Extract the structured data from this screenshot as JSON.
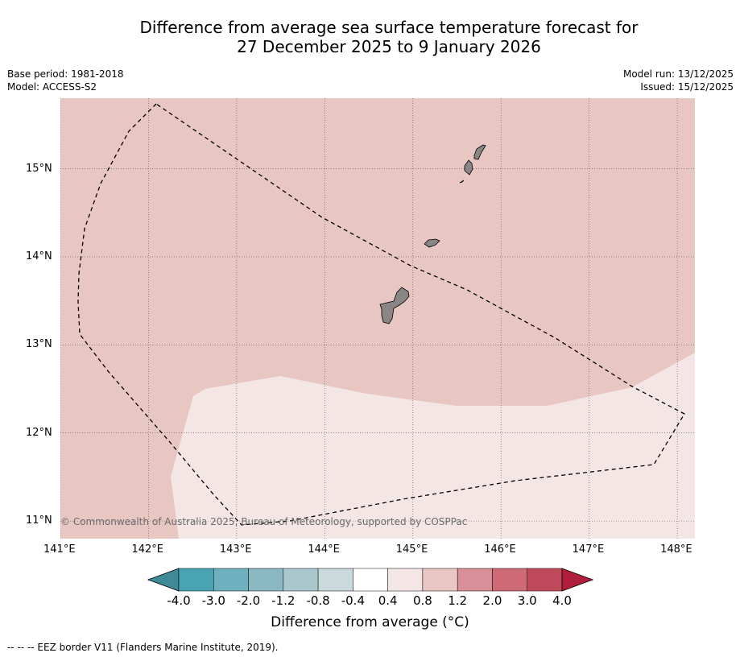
{
  "title_line1": "Difference from average sea surface temperature forecast for",
  "title_line2": "27 December 2025 to 9 January 2026",
  "meta": {
    "base_period": "Base period: 1981-2018",
    "model": "Model: ACCESS-S2",
    "model_run": "Model run: 13/12/2025",
    "issued": "Issued: 15/12/2025"
  },
  "map": {
    "lon_range": [
      141.0,
      148.2
    ],
    "lat_range": [
      10.8,
      15.8
    ],
    "lon_ticks": [
      "141°E",
      "142°E",
      "143°E",
      "144°E",
      "145°E",
      "146°E",
      "147°E",
      "148°E"
    ],
    "lat_ticks": [
      "15°N",
      "14°N",
      "13°N",
      "12°N",
      "11°N"
    ],
    "region_colors": {
      "upper": "#e8c6c2",
      "lower": "#f4e6e5"
    },
    "land_color": "#8a8685",
    "copyright": "© Commonwealth of Australia 2025, Bureau of Meteorology, supported by COSPPac"
  },
  "colorbar": {
    "ticks": [
      "-4.0",
      "-3.0",
      "-2.0",
      "-1.2",
      "-0.8",
      "-0.4",
      "0.4",
      "0.8",
      "1.2",
      "2.0",
      "3.0",
      "4.0"
    ],
    "colors": [
      "#3f8a96",
      "#4aa3b3",
      "#6eb0bd",
      "#8ab8c3",
      "#a9c7cc",
      "#c9d9dc",
      "#ffffff",
      "#f4e6e5",
      "#e8c6c2",
      "#d98f97",
      "#cd6a76",
      "#c04a5b",
      "#b01e3c"
    ],
    "label": "Difference from average (°C)"
  },
  "footnote": "--  --  -- EEZ border V11 (Flanders Marine Institute, 2019)."
}
